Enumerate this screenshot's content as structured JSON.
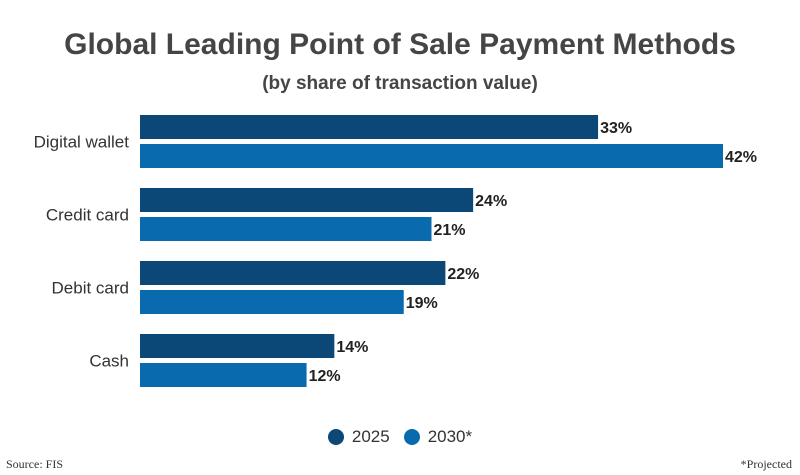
{
  "chart_data": {
    "type": "bar",
    "orientation": "horizontal",
    "title": "Global Leading Point of Sale Payment Methods",
    "subtitle": "(by share of transaction value)",
    "categories": [
      "Digital wallet",
      "Credit card",
      "Debit card",
      "Cash"
    ],
    "series": [
      {
        "name": "2025",
        "values": [
          33,
          24,
          22,
          14
        ],
        "color": "#0b4877",
        "labels": [
          "33%",
          "24%",
          "22%",
          "14%"
        ]
      },
      {
        "name": "2030*",
        "values": [
          42,
          21,
          19,
          12
        ],
        "color": "#0a6aae",
        "labels": [
          "42%",
          "21%",
          "19%",
          "12%"
        ]
      }
    ],
    "xlim": [
      0,
      50
    ],
    "grid": false,
    "legend_position": "bottom-center"
  },
  "legend": [
    {
      "label": "2025",
      "color": "#0b4877"
    },
    {
      "label": "2030*",
      "color": "#0a6aae"
    }
  ],
  "footer": {
    "source": "Source: FIS",
    "note": "*Projected"
  }
}
